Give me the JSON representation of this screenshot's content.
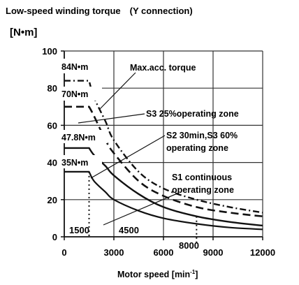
{
  "chart_data": {
    "type": "line",
    "title": "Low-speed winding torque　(Y connection)",
    "ylabel": "[N•m]",
    "xlabel": "Motor speed [min",
    "xlabel_sup": "-1",
    "xlabel_close": "]",
    "xlim": [
      0,
      12000
    ],
    "ylim": [
      0,
      100
    ],
    "x_ticks": [
      "0",
      "3000",
      "6000",
      "9000",
      "12000"
    ],
    "y_ticks": [
      "0",
      "20",
      "40",
      "60",
      "80",
      "100"
    ],
    "grid": true,
    "series": [
      {
        "x": [
          0,
          1500,
          1800,
          2500,
          3000,
          4500,
          6000,
          8000,
          10000,
          12000
        ],
        "y": [
          84,
          84,
          75,
          62,
          52,
          35,
          26,
          20,
          16,
          13
        ]
      },
      {
        "x": [
          0,
          1500,
          1800,
          2500,
          3000,
          4500,
          6000,
          8000,
          10000,
          12000
        ],
        "y": [
          70,
          70,
          65,
          52,
          45,
          30,
          22,
          16,
          13,
          11
        ]
      },
      {
        "x": [
          0,
          1500,
          1800,
          2500,
          3000,
          4500,
          6000,
          8000,
          10000,
          12000
        ],
        "y": [
          47.8,
          47.8,
          44,
          38,
          33,
          23,
          16,
          11,
          8,
          6
        ]
      },
      {
        "x": [
          0,
          1500,
          1800,
          2500,
          3000,
          4500,
          6000,
          8000,
          10000,
          12000
        ],
        "y": [
          35,
          35,
          30,
          24,
          20,
          14,
          10,
          7,
          5,
          4
        ]
      }
    ],
    "annotations": {
      "level_84": "84N•m",
      "level_70": "70N•m",
      "level_478": "47.8N•m",
      "level_35": "35N•m",
      "max_acc": "Max.acc. torque",
      "s3_25": "S3 25%operating zone",
      "s2_line1": "S2 30min,S3 60%",
      "s2_line2": "operating zone",
      "s1_line1": "S1 continuous",
      "s1_line2": "operating zone",
      "speed_1500": "1500",
      "speed_4500": "4500",
      "speed_8000": "8000"
    }
  }
}
